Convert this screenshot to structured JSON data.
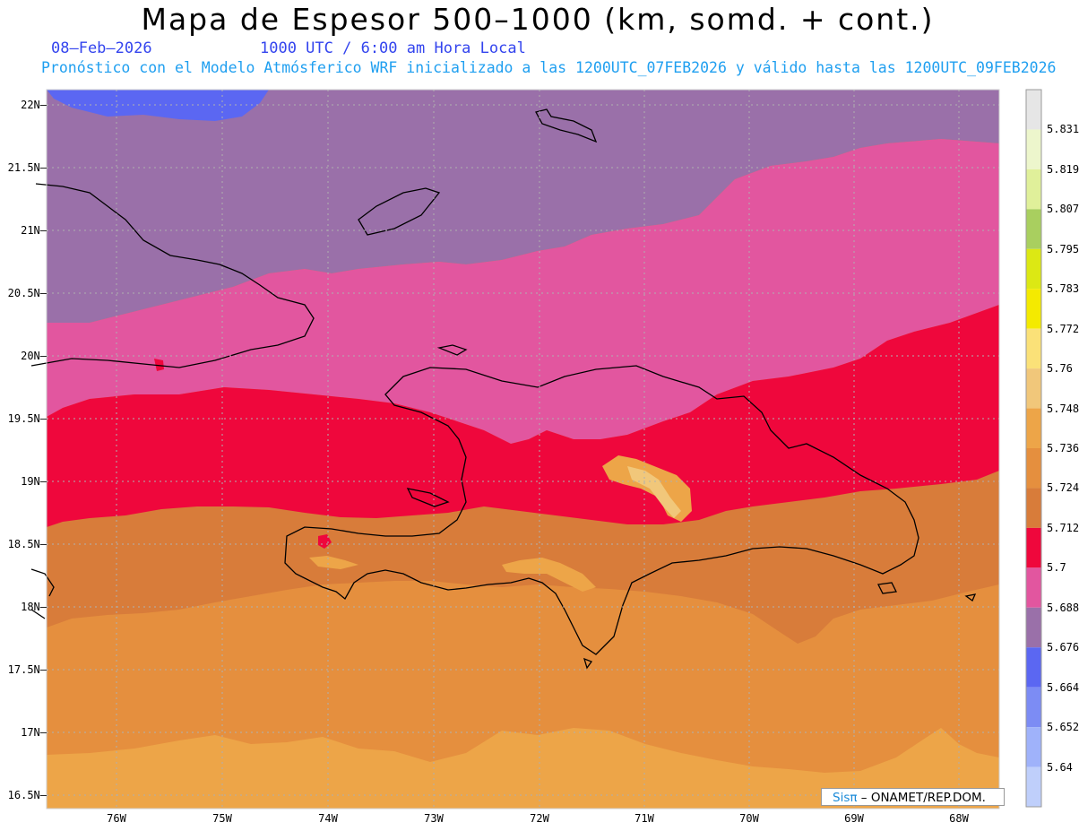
{
  "title": "Mapa de Espesor 500–1000 (km, somd. + cont.)",
  "date": "08–Feb–2026",
  "valid_time": "1000 UTC / 6:00 am Hora Local",
  "description": "Pronóstico con el Modelo Atmósferico WRF inicializado a las 1200UTC_07FEB2026 y válido hasta las  1200UTC_09FEB2026",
  "credit": {
    "brand": "Sisπ",
    "text": "–  ONAMET/REP.DOM."
  },
  "lat_labels": [
    "22N",
    "21.5N",
    "21N",
    "20.5N",
    "20N",
    "19.5N",
    "19N",
    "18.5N",
    "18N",
    "17.5N",
    "17N",
    "16.5N"
  ],
  "lon_labels": [
    "76W",
    "75W",
    "74W",
    "73W",
    "72W",
    "71W",
    "70W",
    "69W",
    "68W"
  ],
  "legend": {
    "values": [
      "5.831",
      "5.819",
      "5.807",
      "5.795",
      "5.783",
      "5.772",
      "5.76",
      "5.748",
      "5.736",
      "5.724",
      "5.712",
      "5.7",
      "5.688",
      "5.676",
      "5.664",
      "5.652",
      "5.64"
    ],
    "colors": [
      "#e6e6e6",
      "#edf6cc",
      "#e0f09a",
      "#a9cf5f",
      "#dce814",
      "#f4ea00",
      "#fbe178",
      "#f1c77a",
      "#eda548",
      "#e58f3e",
      "#d87c3a",
      "#ef073c",
      "#e2569f",
      "#9a70a9",
      "#5b67f2",
      "#7c8cf4",
      "#9fb2fa",
      "#bfcffb"
    ]
  },
  "thickness_colors": {
    "5.676-5.688": "#9a70a9",
    "5.688-5.700": "#e2569f",
    "5.700-5.712": "#ef073c",
    "5.712-5.724": "#d87c3a",
    "5.724-5.736": "#e58f3e",
    "5.736-5.748": "#eda548",
    "5.664-5.676": "#5b67f2"
  }
}
